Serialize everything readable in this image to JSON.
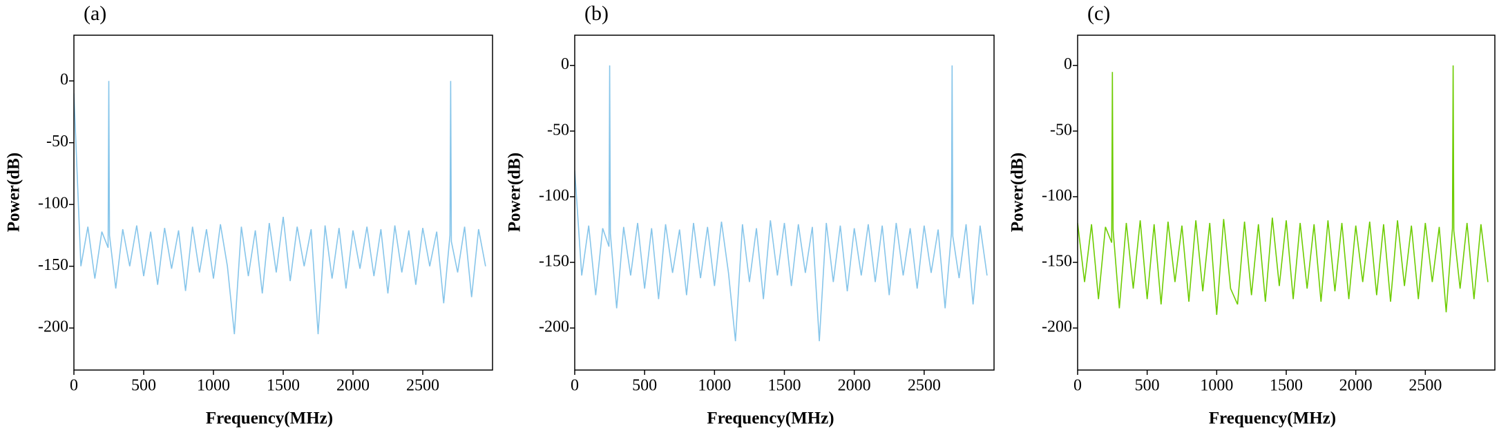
{
  "chart_data": [
    {
      "type": "line",
      "title": "(a)",
      "xlabel": "Frequency(MHz)",
      "ylabel": "Power(dB)",
      "color": "#86c5ea",
      "xlim": [
        0,
        3000
      ],
      "ylim": [
        -234,
        37
      ],
      "xticks": [
        0,
        500,
        1000,
        1500,
        2000,
        2500
      ],
      "yticks": [
        0,
        -50,
        -100,
        -150,
        -200
      ],
      "x": [
        0,
        50,
        100,
        150,
        200,
        245,
        250,
        255,
        300,
        350,
        400,
        450,
        500,
        550,
        600,
        650,
        700,
        750,
        800,
        850,
        900,
        950,
        1000,
        1050,
        1100,
        1150,
        1200,
        1250,
        1300,
        1350,
        1400,
        1450,
        1500,
        1550,
        1600,
        1650,
        1700,
        1750,
        1800,
        1850,
        1900,
        1950,
        2000,
        2050,
        2100,
        2150,
        2200,
        2250,
        2300,
        2350,
        2400,
        2450,
        2500,
        2550,
        2600,
        2650,
        2695,
        2700,
        2705,
        2750,
        2800,
        2850,
        2900,
        2950
      ],
      "values": [
        -10,
        -150,
        -118,
        -160,
        -122,
        -135,
        0,
        -125,
        -168,
        -120,
        -150,
        -117,
        -158,
        -122,
        -165,
        -119,
        -152,
        -121,
        -170,
        -118,
        -155,
        -120,
        -160,
        -116,
        -150,
        -205,
        -118,
        -158,
        -121,
        -172,
        -115,
        -155,
        -110,
        -162,
        -118,
        -150,
        -120,
        -205,
        -117,
        -160,
        -119,
        -168,
        -121,
        -152,
        -118,
        -158,
        -120,
        -172,
        -117,
        -155,
        -121,
        -165,
        -119,
        -150,
        -122,
        -180,
        -125,
        0,
        -130,
        -155,
        -118,
        -175,
        -120,
        -150
      ]
    },
    {
      "type": "line",
      "title": "(b)",
      "xlabel": "Frequency(MHz)",
      "ylabel": "Power(dB)",
      "color": "#86c5ea",
      "xlim": [
        0,
        3000
      ],
      "ylim": [
        -232,
        23
      ],
      "xticks": [
        0,
        500,
        1000,
        1500,
        2000,
        2500
      ],
      "yticks": [
        0,
        -50,
        -100,
        -150,
        -200
      ],
      "x": [
        0,
        50,
        100,
        150,
        200,
        245,
        250,
        255,
        300,
        350,
        400,
        450,
        500,
        550,
        600,
        650,
        700,
        750,
        800,
        850,
        900,
        950,
        1000,
        1050,
        1100,
        1150,
        1200,
        1250,
        1300,
        1350,
        1400,
        1450,
        1500,
        1550,
        1600,
        1650,
        1700,
        1750,
        1800,
        1850,
        1900,
        1950,
        2000,
        2050,
        2100,
        2150,
        2200,
        2250,
        2300,
        2350,
        2400,
        2450,
        2500,
        2550,
        2600,
        2650,
        2695,
        2700,
        2705,
        2750,
        2800,
        2850,
        2900,
        2950
      ],
      "values": [
        -80,
        -160,
        -122,
        -175,
        -124,
        -138,
        0,
        -128,
        -185,
        -123,
        -160,
        -120,
        -170,
        -124,
        -178,
        -121,
        -158,
        -125,
        -175,
        -120,
        -162,
        -123,
        -168,
        -119,
        -158,
        -210,
        -121,
        -165,
        -124,
        -178,
        -118,
        -160,
        -120,
        -168,
        -121,
        -158,
        -123,
        -210,
        -120,
        -165,
        -122,
        -172,
        -124,
        -160,
        -121,
        -165,
        -122,
        -175,
        -120,
        -160,
        -124,
        -170,
        -122,
        -158,
        -125,
        -185,
        -128,
        0,
        -130,
        -162,
        -121,
        -182,
        -122,
        -160
      ]
    },
    {
      "type": "line",
      "title": "(c)",
      "xlabel": "Frequency(MHz)",
      "ylabel": "Power(dB)",
      "color": "#6dcc00",
      "xlim": [
        0,
        3000
      ],
      "ylim": [
        -232,
        23
      ],
      "xticks": [
        0,
        500,
        1000,
        1500,
        2000,
        2500
      ],
      "yticks": [
        0,
        -50,
        -100,
        -150,
        -200
      ],
      "x": [
        0,
        50,
        100,
        150,
        200,
        245,
        250,
        255,
        300,
        350,
        400,
        450,
        500,
        550,
        600,
        650,
        700,
        750,
        800,
        850,
        900,
        950,
        1000,
        1050,
        1100,
        1150,
        1200,
        1250,
        1300,
        1350,
        1400,
        1450,
        1500,
        1550,
        1600,
        1650,
        1700,
        1750,
        1800,
        1850,
        1900,
        1950,
        2000,
        2050,
        2100,
        2150,
        2200,
        2250,
        2300,
        2350,
        2400,
        2450,
        2500,
        2550,
        2600,
        2650,
        2695,
        2700,
        2705,
        2750,
        2800,
        2850,
        2900,
        2950
      ],
      "values": [
        -120,
        -165,
        -121,
        -178,
        -123,
        -135,
        -5,
        -125,
        -185,
        -120,
        -170,
        -118,
        -178,
        -121,
        -182,
        -119,
        -165,
        -122,
        -180,
        -118,
        -172,
        -120,
        -190,
        -117,
        -170,
        -182,
        -119,
        -175,
        -121,
        -180,
        -116,
        -168,
        -118,
        -178,
        -120,
        -170,
        -121,
        -180,
        -118,
        -172,
        -120,
        -178,
        -122,
        -165,
        -119,
        -175,
        -121,
        -180,
        -118,
        -168,
        -122,
        -178,
        -120,
        -165,
        -123,
        -188,
        -124,
        0,
        -126,
        -170,
        -120,
        -178,
        -121,
        -165
      ]
    }
  ]
}
